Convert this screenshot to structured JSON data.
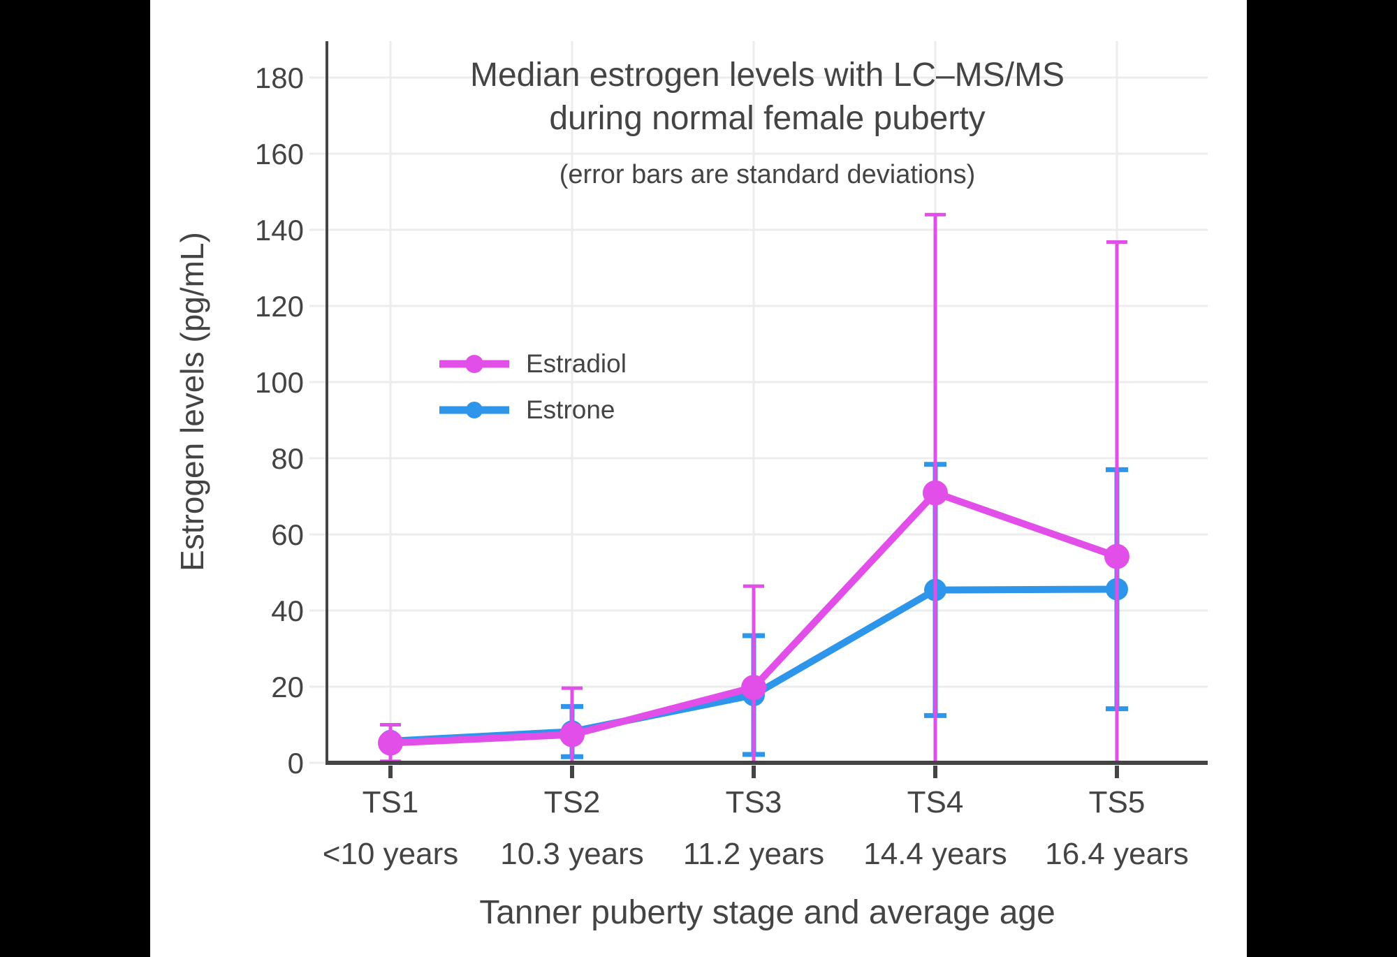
{
  "title": {
    "line1": "Median estrogen levels with LC–MS/MS",
    "line2": "during normal female puberty",
    "subtitle": "(error bars are standard deviations)"
  },
  "colors": {
    "letterbox": "#000000",
    "background": "#FFFFFF",
    "text": "#444444",
    "grid": "#ECECEC",
    "axis_line": "#444444",
    "x_tick": "#444444",
    "estradiol": "#E24FE8",
    "estrone": "#2E96EA"
  },
  "chart_data": {
    "type": "line",
    "title": "Median estrogen levels with LC–MS/MS during normal female puberty",
    "subtitle": "(error bars are standard deviations)",
    "xlabel": "Tanner puberty stage and average age",
    "ylabel": "Estrogen levels (pg/mL)",
    "categories": [
      "TS1",
      "TS2",
      "TS3",
      "TS4",
      "TS5"
    ],
    "category_ages": [
      "<10 years",
      "10.3 years",
      "11.2 years",
      "14.4 years",
      "16.4 years"
    ],
    "yticks": [
      0,
      20,
      40,
      60,
      80,
      100,
      120,
      140,
      160,
      180
    ],
    "ylim": [
      0,
      189.5
    ],
    "grid": true,
    "legend_position": "inside-upper-left",
    "marker": "circle",
    "error_bars": "standard deviations, clipped at y = 0",
    "series": [
      {
        "name": "Estradiol",
        "color": "#E24FE8",
        "values": [
          5.2,
          7.4,
          19.8,
          70.9,
          54.2
        ],
        "sd": [
          4.8,
          12.2,
          26.6,
          73.1,
          82.6
        ]
      },
      {
        "name": "Estrone",
        "color": "#2E96EA",
        "values": [
          5.7,
          8.2,
          17.8,
          45.4,
          45.6
        ],
        "sd": [
          null,
          6.6,
          15.6,
          33.0,
          31.4
        ]
      }
    ]
  }
}
